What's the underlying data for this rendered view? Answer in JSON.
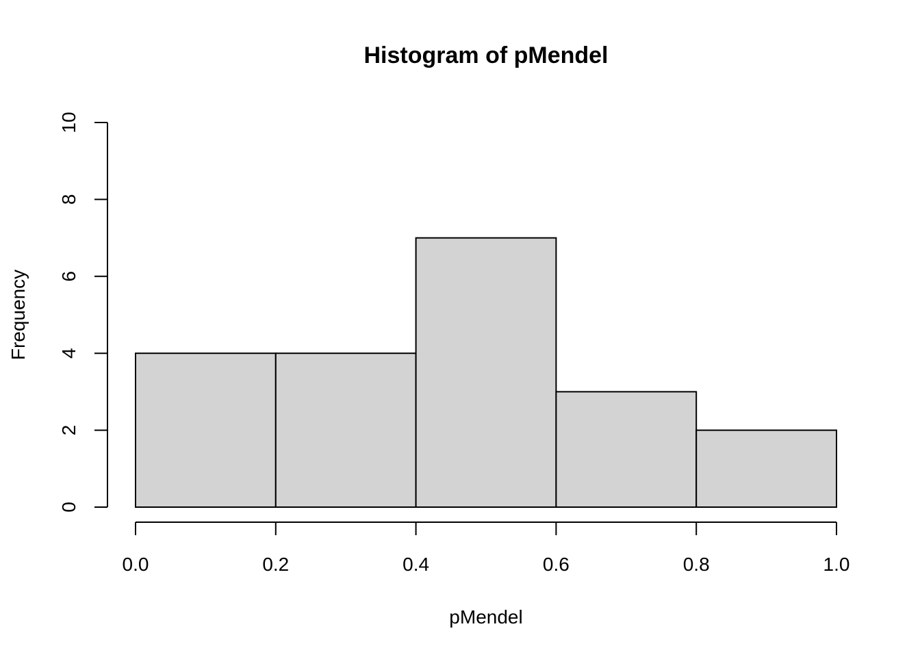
{
  "chart_data": {
    "type": "bar",
    "title": "Histogram of pMendel",
    "xlabel": "pMendel",
    "ylabel": "Frequency",
    "bins": [
      {
        "start": 0.0,
        "end": 0.2,
        "count": 4
      },
      {
        "start": 0.2,
        "end": 0.4,
        "count": 4
      },
      {
        "start": 0.4,
        "end": 0.6,
        "count": 7
      },
      {
        "start": 0.6,
        "end": 0.8,
        "count": 3
      },
      {
        "start": 0.8,
        "end": 1.0,
        "count": 2
      }
    ],
    "xlim": [
      0.0,
      1.0
    ],
    "ylim": [
      0,
      10
    ],
    "x_ticks": [
      "0.0",
      "0.2",
      "0.4",
      "0.6",
      "0.8",
      "1.0"
    ],
    "y_ticks": [
      "0",
      "2",
      "4",
      "6",
      "8",
      "10"
    ],
    "bar_fill": "#d3d3d3",
    "bar_stroke": "#000000",
    "grid": false,
    "legend": "none"
  }
}
